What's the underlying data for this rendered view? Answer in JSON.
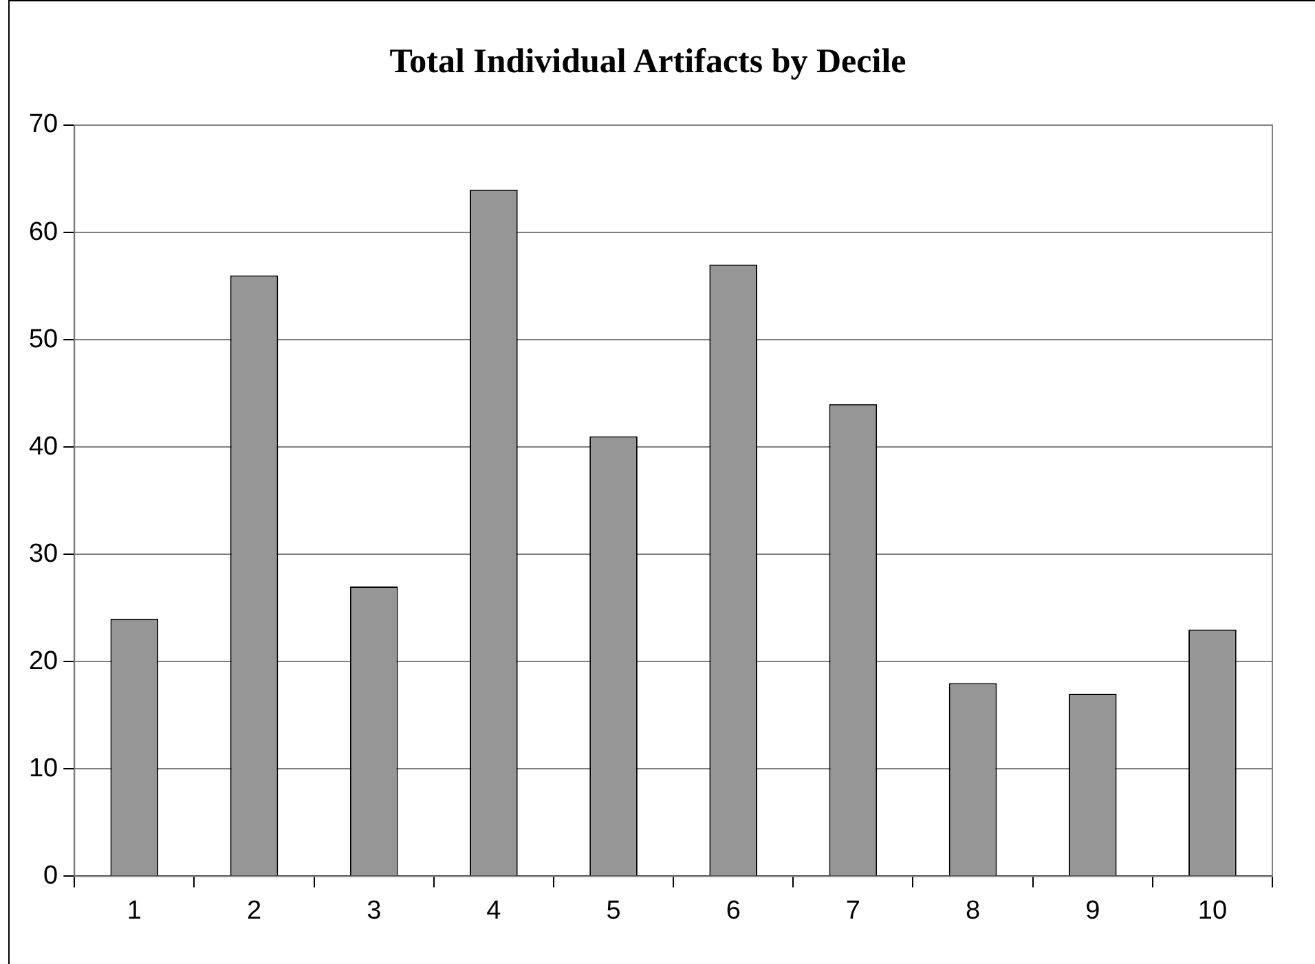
{
  "chart_data": {
    "type": "bar",
    "title": "Total Individual Artifacts by Decile",
    "categories": [
      "1",
      "2",
      "3",
      "4",
      "5",
      "6",
      "7",
      "8",
      "9",
      "10"
    ],
    "values": [
      24,
      56,
      27,
      64,
      41,
      57,
      44,
      18,
      17,
      23
    ],
    "color": "#969696",
    "ylim": [
      0,
      70
    ],
    "yticks": [
      0,
      10,
      20,
      30,
      40,
      50,
      60,
      70
    ],
    "grid": "y",
    "legend": false
  }
}
